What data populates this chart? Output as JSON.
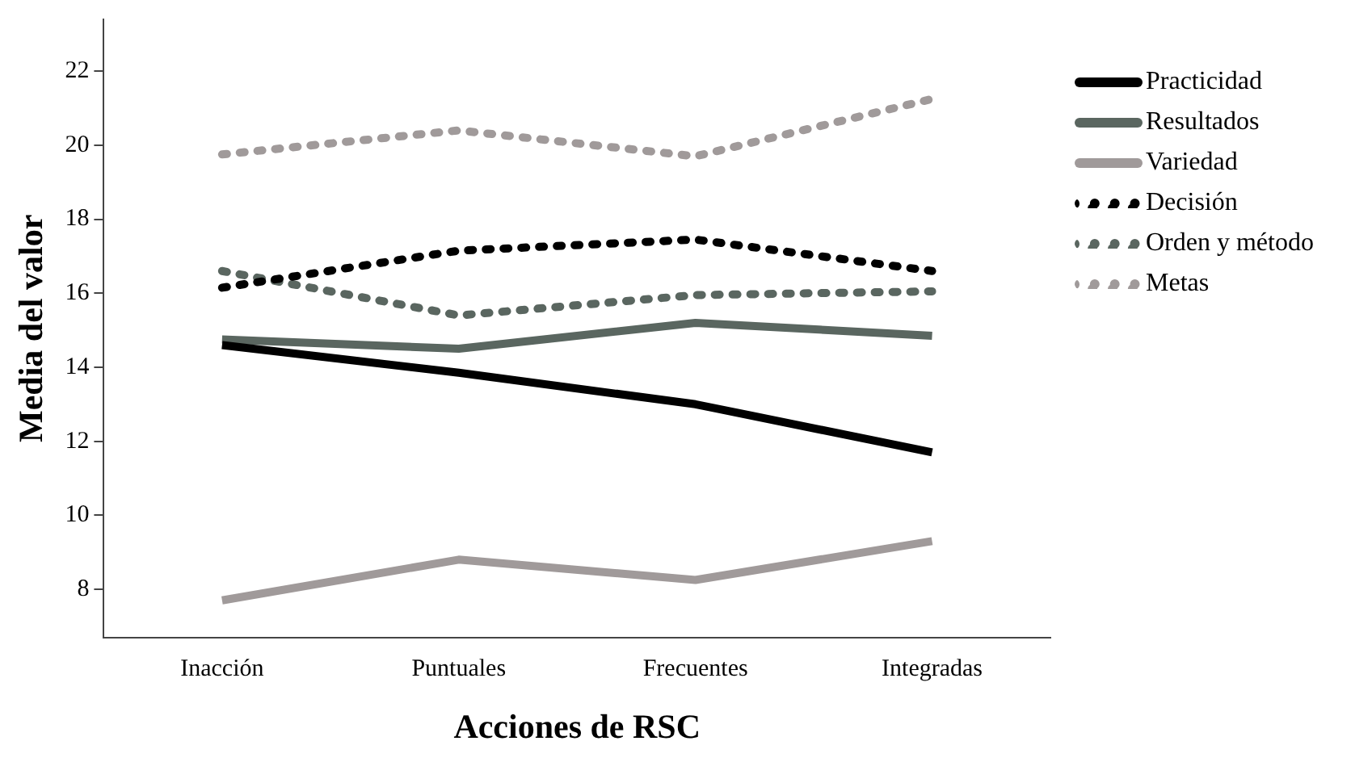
{
  "chart_data": {
    "type": "line",
    "xlabel": "Acciones de RSC",
    "ylabel": "Media del valor",
    "categories": [
      "Inacción",
      "Puntuales",
      "Frecuentes",
      "Integradas"
    ],
    "ylim": [
      6.7,
      23.4
    ],
    "yticks": [
      8,
      10,
      12,
      14,
      16,
      18,
      20,
      22
    ],
    "grid": false,
    "legend": "right",
    "marker": "none",
    "series": [
      {
        "name": "Practicidad",
        "color": "#000000",
        "line_style": "solid",
        "values": [
          14.6,
          13.85,
          13.0,
          11.7
        ]
      },
      {
        "name": "Resultados",
        "color": "#5a6660",
        "line_style": "solid",
        "values": [
          14.75,
          14.5,
          15.2,
          14.85
        ]
      },
      {
        "name": "Variedad",
        "color": "#a09a9a",
        "line_style": "solid",
        "values": [
          7.7,
          8.8,
          8.25,
          9.3
        ]
      },
      {
        "name": "Decisión",
        "color": "#000000",
        "line_style": "dotted",
        "values": [
          16.15,
          17.15,
          17.45,
          16.6
        ]
      },
      {
        "name": "Orden y método",
        "color": "#5a6660",
        "line_style": "dotted",
        "values": [
          16.6,
          15.4,
          15.95,
          16.05
        ]
      },
      {
        "name": "Metas",
        "color": "#a09a9a",
        "line_style": "dotted",
        "values": [
          19.75,
          20.4,
          19.7,
          21.25
        ]
      }
    ]
  }
}
